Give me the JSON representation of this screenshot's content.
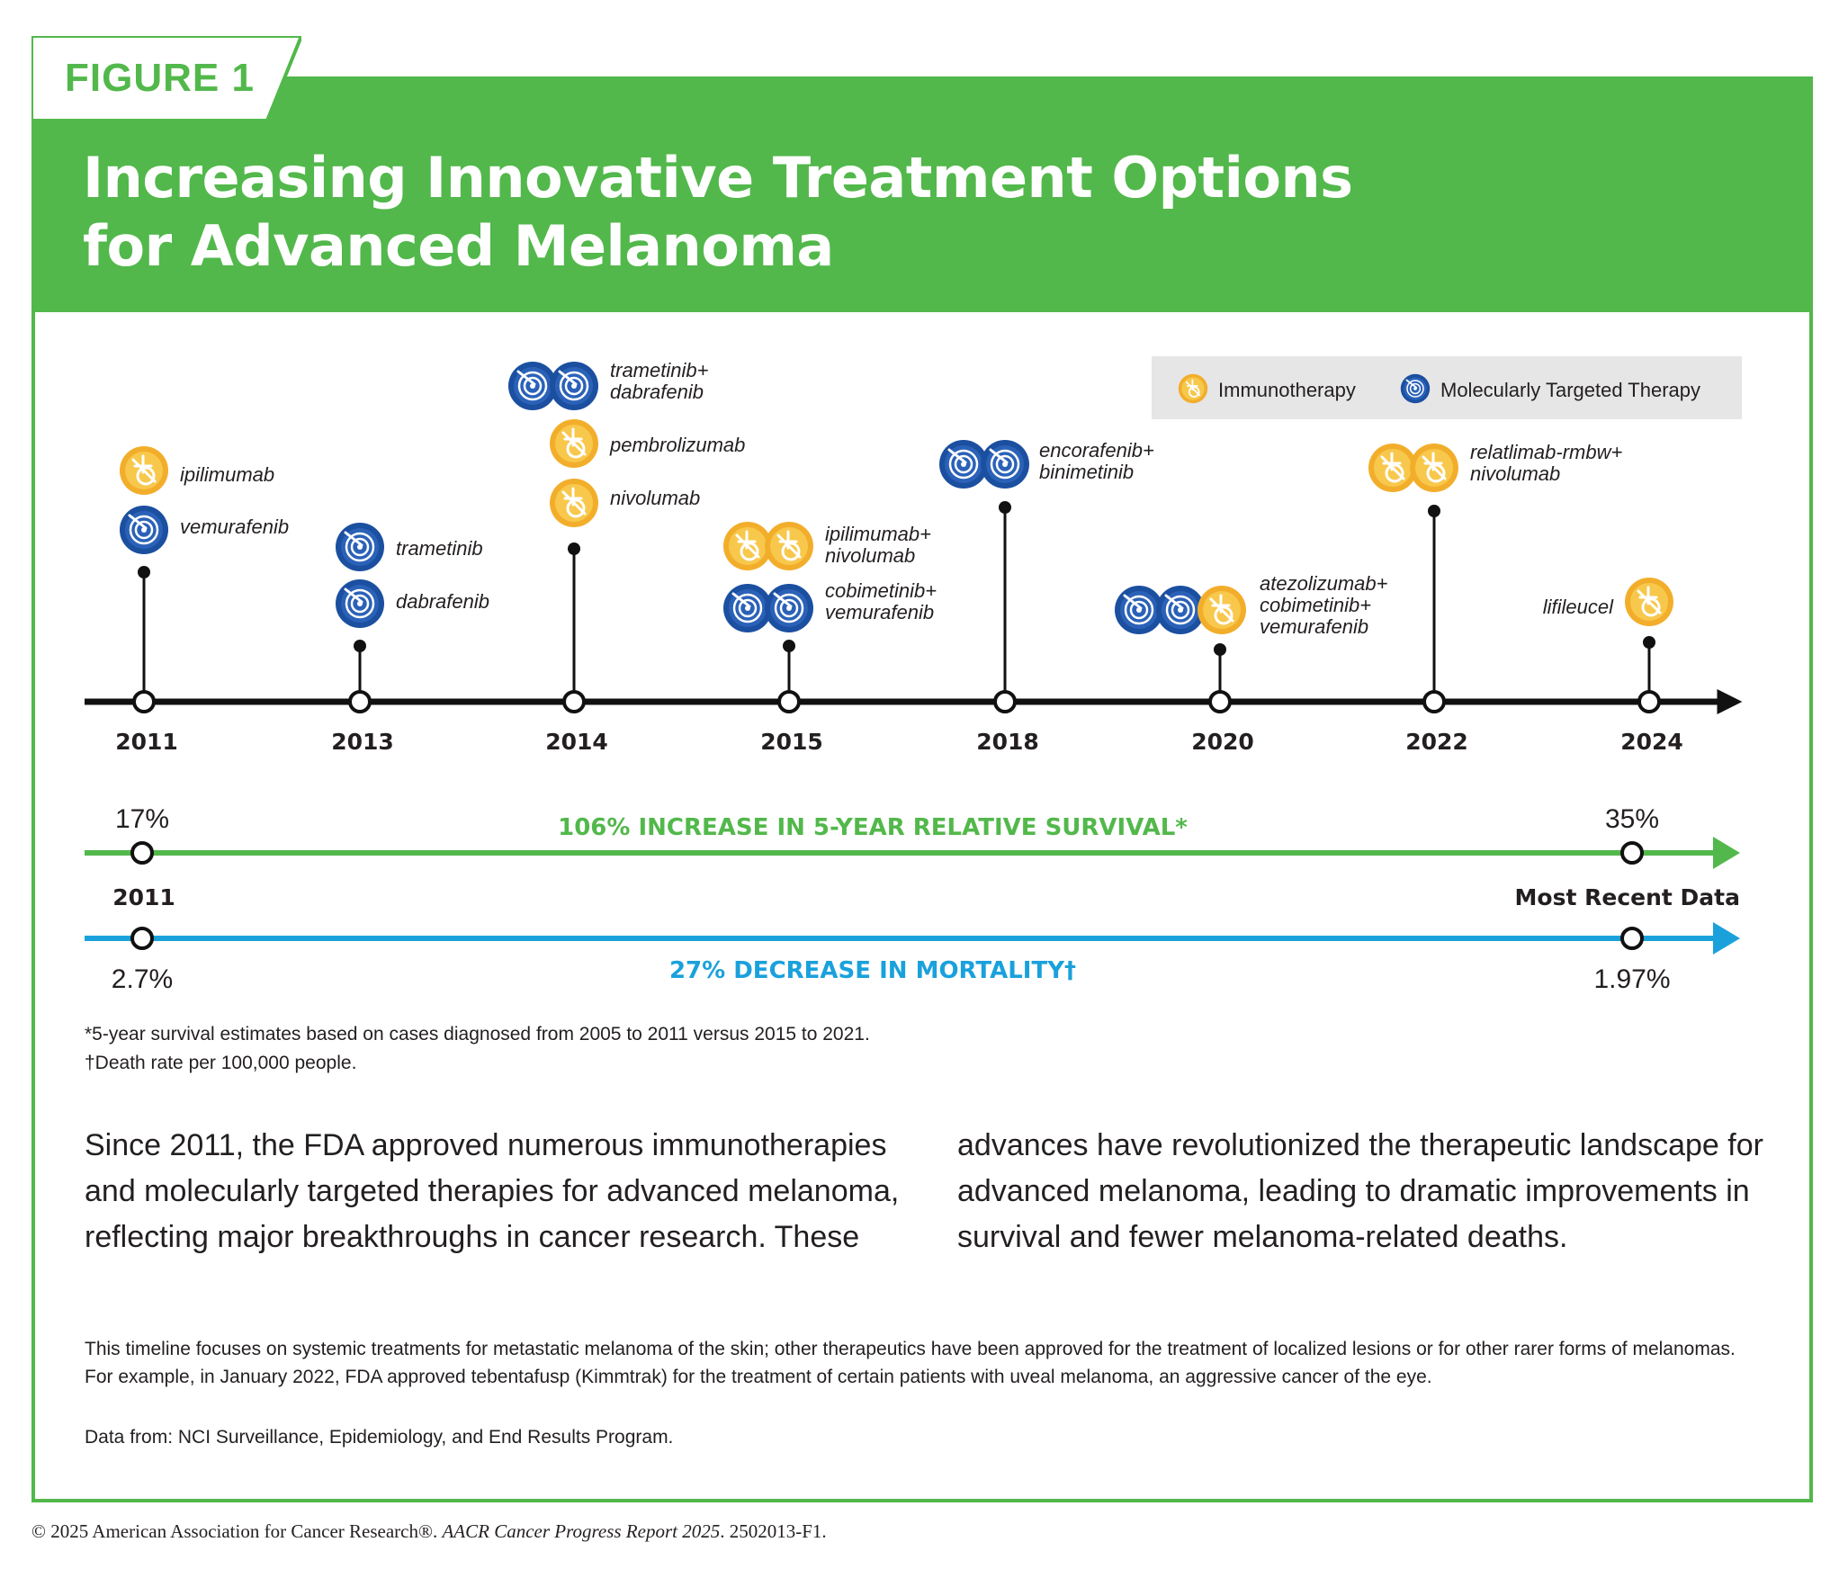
{
  "figure_label": "FIGURE 1",
  "title": {
    "line1": "Increasing Innovative Treatment Options",
    "line2": "for Advanced Melanoma"
  },
  "legend": {
    "immunotherapy": "Immunotherapy",
    "targeted": "Molecularly Targeted Therapy"
  },
  "colors": {
    "brand_green": "#52b84b",
    "mortality_blue": "#1aa1dc",
    "immunotherapy": "#f2ae2b",
    "targeted": "#1b4fa0"
  },
  "timeline": [
    {
      "year": "2011",
      "groups": [
        {
          "icons": [
            "immunotherapy"
          ],
          "label": [
            "ipilimumab"
          ]
        },
        {
          "icons": [
            "targeted"
          ],
          "label": [
            "vemurafenib"
          ]
        }
      ]
    },
    {
      "year": "2013",
      "groups": [
        {
          "icons": [
            "targeted"
          ],
          "label": [
            "trametinib"
          ]
        },
        {
          "icons": [
            "targeted"
          ],
          "label": [
            "dabrafenib"
          ]
        }
      ]
    },
    {
      "year": "2014",
      "groups": [
        {
          "icons": [
            "targeted",
            "targeted"
          ],
          "label": [
            "trametinib+",
            "dabrafenib"
          ]
        },
        {
          "icons": [
            "immunotherapy"
          ],
          "label": [
            "pembrolizumab"
          ]
        },
        {
          "icons": [
            "immunotherapy"
          ],
          "label": [
            "nivolumab"
          ]
        }
      ]
    },
    {
      "year": "2015",
      "groups": [
        {
          "icons": [
            "immunotherapy",
            "immunotherapy"
          ],
          "label": [
            "ipilimumab+",
            "nivolumab"
          ]
        },
        {
          "icons": [
            "targeted",
            "targeted"
          ],
          "label": [
            "cobimetinib+",
            "vemurafenib"
          ]
        }
      ]
    },
    {
      "year": "2018",
      "groups": [
        {
          "icons": [
            "targeted",
            "targeted"
          ],
          "label": [
            "encorafenib+",
            "binimetinib"
          ]
        }
      ]
    },
    {
      "year": "2020",
      "groups": [
        {
          "icons": [
            "targeted",
            "targeted",
            "immunotherapy"
          ],
          "label": [
            "atezolizumab+",
            "cobimetinib+",
            "vemurafenib"
          ]
        }
      ]
    },
    {
      "year": "2022",
      "groups": [
        {
          "icons": [
            "immunotherapy",
            "immunotherapy"
          ],
          "label": [
            "relatlimab-rmbw+",
            "nivolumab"
          ]
        }
      ]
    },
    {
      "year": "2024",
      "groups": [
        {
          "icons": [
            "immunotherapy"
          ],
          "label": [
            "lifileucel"
          ]
        }
      ]
    }
  ],
  "survival": {
    "start_value": "17%",
    "end_value": "35%",
    "headline": "106% INCREASE IN 5-YEAR RELATIVE SURVIVAL*"
  },
  "period": {
    "start_label": "2011",
    "end_label": "Most Recent Data"
  },
  "mortality": {
    "start_value": "2.7%",
    "end_value": "1.97%",
    "headline": "27% DECREASE IN MORTALITY†"
  },
  "footnotes": {
    "survival": "*5-year survival estimates based on cases diagnosed from 2005 to 2011 versus 2015 to 2021.",
    "mortality": "†Death rate per 100,000 people."
  },
  "body_text": "Since 2011, the FDA approved numerous immunotherapies and molecularly targeted therapies for advanced melanoma, reflecting major breakthroughs in cancer research. These advances have revolutionized the therapeutic landscape for advanced melanoma, leading to dramatic improvements in survival and fewer melanoma-related deaths.",
  "note_text": "This timeline focuses on systemic treatments for metastatic melanoma of the skin; other therapeutics have been approved for the treatment of localized lesions or for other rarer forms of melanomas. For example, in January 2022, FDA approved tebentafusp (Kimmtrak) for the treatment of certain patients with uveal melanoma, an aggressive cancer of the eye.",
  "source_text": "Data from: NCI Surveillance, Epidemiology, and End Results Program.",
  "copyright": {
    "prefix": "© 2025 American Association for Cancer Research®. ",
    "report": "AACR Cancer Progress Report 2025",
    "suffix": ". 2502013-F1."
  }
}
